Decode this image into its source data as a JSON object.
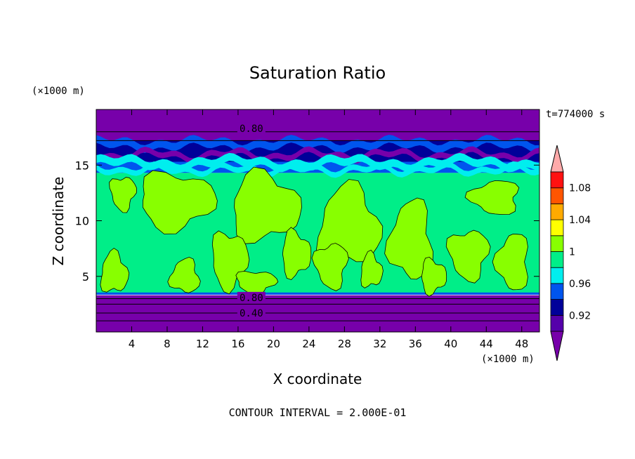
{
  "chart_data": {
    "type": "heatmap",
    "title": "Saturation Ratio",
    "xlabel": "X coordinate",
    "ylabel": "Z coordinate",
    "x_unit": "(×1000 m)",
    "y_unit": "(×1000 m)",
    "time_label": "t=774000 s",
    "footer": "CONTOUR INTERVAL = 2.000E-01",
    "xlim": [
      0,
      50
    ],
    "ylim": [
      0,
      20
    ],
    "x_ticks": [
      4,
      8,
      12,
      16,
      20,
      24,
      28,
      32,
      36,
      40,
      44,
      48
    ],
    "y_ticks": [
      5,
      10,
      15
    ],
    "contour_labels": [
      {
        "text": "0.80",
        "x": 17.5,
        "z": 18.3
      },
      {
        "text": "0.80",
        "x": 17.5,
        "z": 3.1
      },
      {
        "text": "0.40",
        "x": 17.5,
        "z": 1.7
      }
    ],
    "colorbar": {
      "levels": [
        0.9,
        0.92,
        0.94,
        0.96,
        0.98,
        1.0,
        1.02,
        1.04,
        1.06,
        1.08,
        1.1
      ],
      "tick_labels": [
        "0.92",
        "0.96",
        "1",
        "1.04",
        "1.08"
      ],
      "colors": [
        "#5500aa",
        "#000099",
        "#0055ee",
        "#00eeee",
        "#00ee88",
        "#88ff00",
        "#ffff00",
        "#ffaa00",
        "#ff5500",
        "#ff1111"
      ],
      "under_color": "#7700aa",
      "over_color": "#ffaaaa"
    },
    "layers": [
      {
        "name": "purple-top",
        "z": [
          18.0,
          20.0
        ],
        "value": "<0.90"
      },
      {
        "name": "band-purple-upper",
        "z": [
          17.2,
          18.0
        ],
        "value": "<0.90"
      },
      {
        "name": "band-navy",
        "z": [
          15.3,
          17.2
        ],
        "value": "0.92"
      },
      {
        "name": "band-cyan",
        "z": [
          14.3,
          15.3
        ],
        "value": "0.96"
      },
      {
        "name": "green-mid",
        "z": [
          3.5,
          14.3
        ],
        "value": "0.98-1.00"
      },
      {
        "name": "purple-bottom",
        "z": [
          0.0,
          3.3
        ],
        "value": "<0.90"
      }
    ],
    "colors": {
      "purple": "#7700aa",
      "navy": "#000099",
      "blue": "#0055ee",
      "cyan": "#00eeee",
      "green": "#00ee88",
      "lime": "#88ff00"
    }
  }
}
